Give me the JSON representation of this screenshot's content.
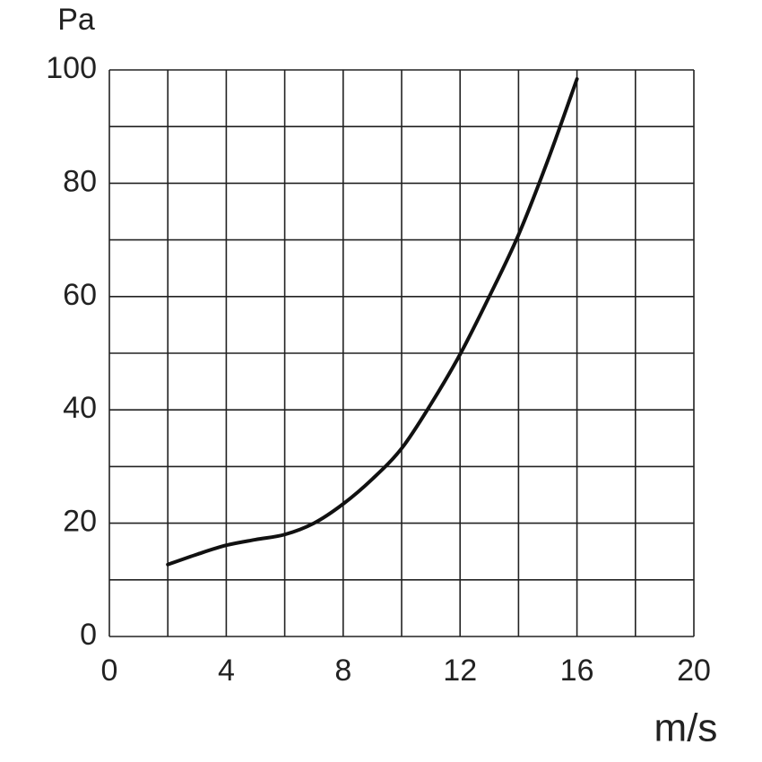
{
  "chart_data": {
    "type": "line",
    "x_label": "m/s",
    "y_label": "Pa",
    "x": [
      2,
      3,
      4,
      5,
      6,
      7,
      8,
      9,
      10,
      11,
      12,
      13,
      14,
      15,
      16
    ],
    "series": [
      {
        "color": "#111111",
        "values": [
          12.7,
          14.5,
          16.1,
          17.1,
          18,
          20,
          23.4,
          27.8,
          33.2,
          41,
          49.8,
          60,
          70.9,
          84,
          98.4
        ]
      }
    ],
    "xlim": [
      0,
      20
    ],
    "ylim": [
      0,
      100
    ],
    "xticks": [
      0,
      4,
      8,
      12,
      16,
      20
    ],
    "yticks": [
      0,
      20,
      40,
      60,
      80,
      100
    ],
    "x_gridlines": [
      0,
      2,
      4,
      6,
      8,
      10,
      12,
      14,
      16,
      18,
      20
    ],
    "y_gridlines": [
      0,
      10,
      20,
      30,
      40,
      50,
      60,
      70,
      80,
      90,
      100
    ],
    "grid": true
  }
}
